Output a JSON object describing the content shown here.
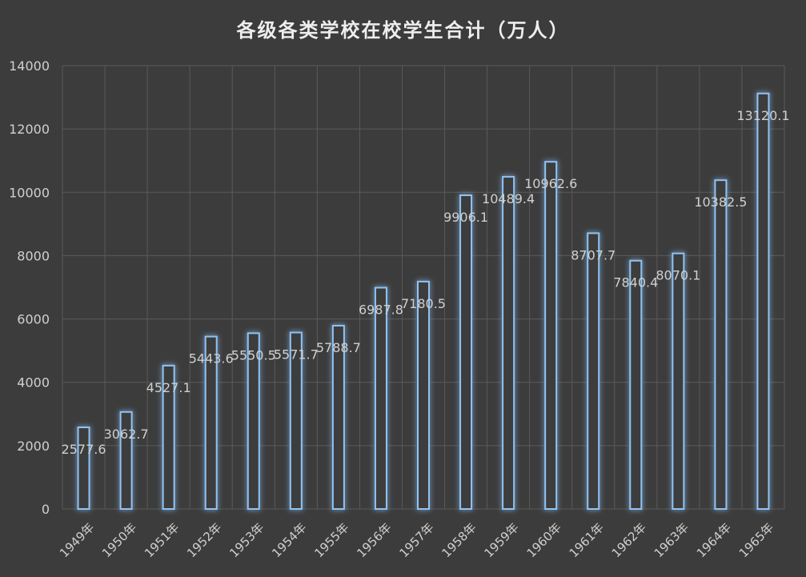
{
  "chart_data": {
    "type": "bar",
    "title": "各级各类学校在校学生合计（万人）",
    "xlabel": "",
    "ylabel": "",
    "categories": [
      "1949年",
      "1950年",
      "1951年",
      "1952年",
      "1953年",
      "1954年",
      "1955年",
      "1956年",
      "1957年",
      "1958年",
      "1959年",
      "1960年",
      "1961年",
      "1962年",
      "1963年",
      "1964年",
      "1965年"
    ],
    "values": [
      2577.6,
      3062.7,
      4527.1,
      5443.6,
      5550.5,
      5571.7,
      5788.7,
      6987.8,
      7180.5,
      9906.1,
      10489.4,
      10962.6,
      8707.7,
      7840.4,
      8070.1,
      10382.5,
      13120.1
    ],
    "data_labels": [
      "2577.6",
      "3062.7",
      "4527.1",
      "5443.6",
      "5550.5",
      "5571.7",
      "5788.7",
      "6987.8",
      "7180.5",
      "9906.1",
      "10489.4",
      "10962.6",
      "8707.7",
      "7840.4",
      "8070.1",
      "10382.5",
      "13120.1"
    ],
    "ylim": [
      0,
      14000
    ],
    "yticks": [
      "0",
      "2000",
      "4000",
      "6000",
      "8000",
      "10000",
      "12000",
      "14000"
    ],
    "grid": true,
    "legend": "none",
    "colors": {
      "background": "#3c3c3c",
      "grid": "#5a5a5a",
      "bar_stroke": "#8fc3f5",
      "bar_glow": "#3d8fe0",
      "bar_fill": "#3c3c3c",
      "text": "#d0d0d0"
    }
  }
}
